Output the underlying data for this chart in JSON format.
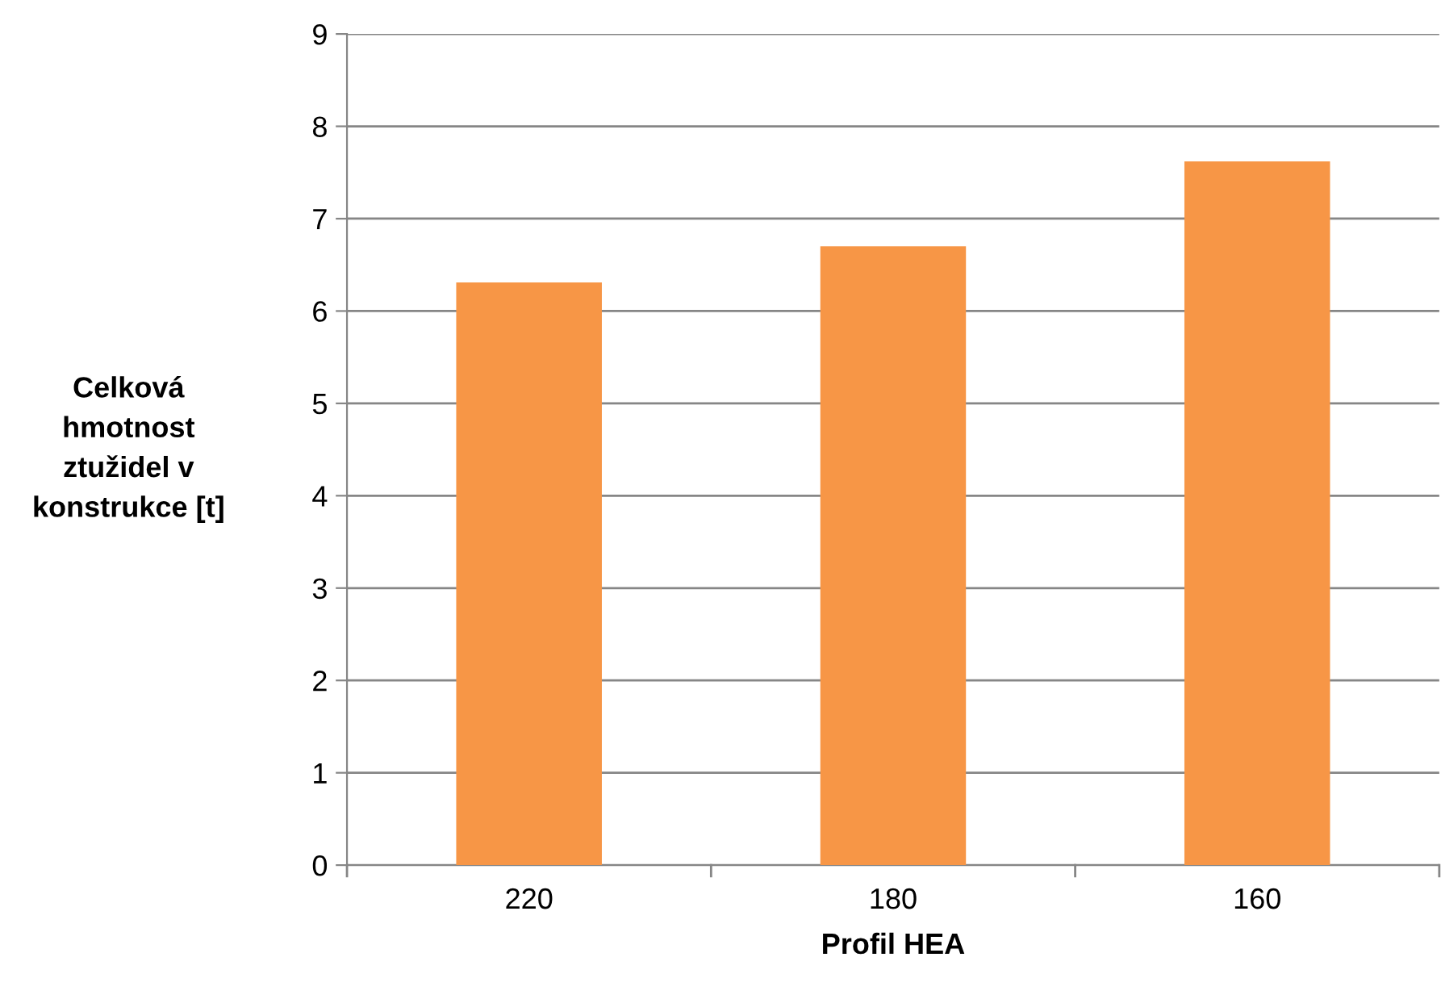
{
  "chart_data": {
    "type": "bar",
    "xlabel": "Profil HEA",
    "ylabel": "Celková\nhmotnost\nztužidel v\nkonstrukce [t]",
    "categories": [
      "220",
      "180",
      "160"
    ],
    "values": [
      6.31,
      6.7,
      7.62
    ],
    "color": "#f79646",
    "ylim": [
      0,
      9
    ],
    "yticks": [
      0,
      1,
      2,
      3,
      4,
      5,
      6,
      7,
      8,
      9
    ],
    "grid": "y"
  }
}
